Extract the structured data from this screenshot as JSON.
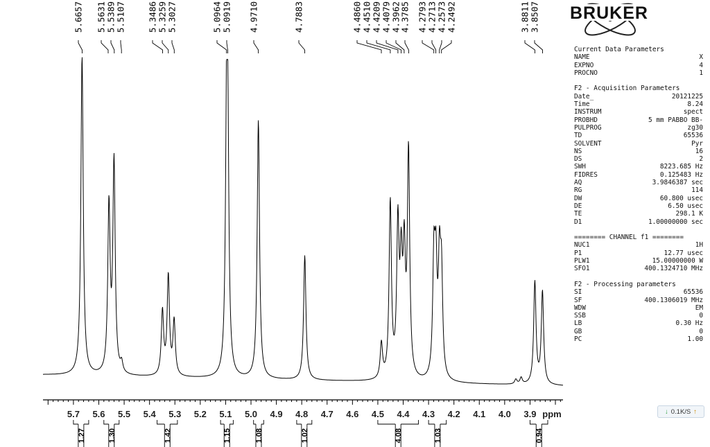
{
  "chart_data": {
    "type": "line",
    "xlabel": "ppm",
    "xlim": [
      5.82,
      3.77
    ],
    "x_ticks": [
      "5.7",
      "5.6",
      "5.5",
      "5.4",
      "5.3",
      "5.2",
      "5.1",
      "5.0",
      "4.9",
      "4.8",
      "4.7",
      "4.6",
      "4.5",
      "4.4",
      "4.3",
      "4.2",
      "4.1",
      "4.0",
      "3.9"
    ],
    "peak_labels": [
      "5.6657",
      "5.5631",
      "5.5389",
      "5.5107",
      "5.3486",
      "5.3259",
      "5.3027",
      "5.0964",
      "5.0919",
      "4.9710",
      "4.7883",
      "4.4860",
      "4.4510",
      "4.4209",
      "4.4079",
      "4.3962",
      "4.3785",
      "4.2793",
      "4.2713",
      "4.2573",
      "4.2492",
      "3.8811",
      "3.8507"
    ],
    "peaks": [
      {
        "ppm": 5.666,
        "height": 1.0
      },
      {
        "ppm": 5.56,
        "height": 0.52
      },
      {
        "ppm": 5.54,
        "height": 0.66
      },
      {
        "ppm": 5.51,
        "height": 0.03
      },
      {
        "ppm": 5.349,
        "height": 0.2
      },
      {
        "ppm": 5.326,
        "height": 0.31
      },
      {
        "ppm": 5.303,
        "height": 0.17
      },
      {
        "ppm": 5.096,
        "height": 0.66
      },
      {
        "ppm": 5.092,
        "height": 0.65
      },
      {
        "ppm": 4.971,
        "height": 0.81
      },
      {
        "ppm": 4.788,
        "height": 0.39
      },
      {
        "ppm": 4.486,
        "height": 0.11
      },
      {
        "ppm": 4.451,
        "height": 0.55
      },
      {
        "ppm": 4.421,
        "height": 0.46
      },
      {
        "ppm": 4.408,
        "height": 0.32
      },
      {
        "ppm": 4.396,
        "height": 0.36
      },
      {
        "ppm": 4.379,
        "height": 0.7
      },
      {
        "ppm": 4.279,
        "height": 0.35
      },
      {
        "ppm": 4.271,
        "height": 0.31
      },
      {
        "ppm": 4.257,
        "height": 0.33
      },
      {
        "ppm": 4.249,
        "height": 0.3
      },
      {
        "ppm": 3.956,
        "height": 0.015
      },
      {
        "ppm": 3.935,
        "height": 0.02
      },
      {
        "ppm": 3.881,
        "height": 0.32
      },
      {
        "ppm": 3.851,
        "height": 0.29
      }
    ],
    "integrals": [
      {
        "value": "1.27",
        "from": 5.7,
        "to": 5.64
      },
      {
        "value": "1.30",
        "from": 5.58,
        "to": 5.52
      },
      {
        "value": "1.42",
        "from": 5.37,
        "to": 5.29
      },
      {
        "value": "1.15",
        "from": 5.12,
        "to": 5.07
      },
      {
        "value": "1.08",
        "from": 4.99,
        "to": 4.95
      },
      {
        "value": "1.02",
        "from": 4.82,
        "to": 4.76
      },
      {
        "value": "4.08",
        "from": 4.5,
        "to": 4.34
      },
      {
        "value": "1.03",
        "from": 4.3,
        "to": 4.23
      },
      {
        "value": "0.94",
        "from": 3.9,
        "to": 3.83
      }
    ]
  },
  "logo_text": "BRUKER",
  "params": {
    "current": {
      "title": "Current Data Parameters",
      "rows": [
        [
          "NAME",
          "X"
        ],
        [
          "EXPNO",
          "4"
        ],
        [
          "PROCNO",
          "1"
        ]
      ]
    },
    "acq": {
      "title": "F2 - Acquisition Parameters",
      "rows": [
        [
          "Date_",
          "20121225"
        ],
        [
          "Time",
          "8.24"
        ],
        [
          "INSTRUM",
          "spect"
        ],
        [
          "PROBHD",
          "5 mm PABBO BB-"
        ],
        [
          "PULPROG",
          "zg30"
        ],
        [
          "TD",
          "65536"
        ],
        [
          "SOLVENT",
          "Pyr"
        ],
        [
          "NS",
          "16"
        ],
        [
          "DS",
          "2"
        ],
        [
          "SWH",
          "8223.685 Hz"
        ],
        [
          "FIDRES",
          "0.125483 Hz"
        ],
        [
          "AQ",
          "3.9846387 sec"
        ],
        [
          "RG",
          "114"
        ],
        [
          "DW",
          "60.800 usec"
        ],
        [
          "DE",
          "6.50 usec"
        ],
        [
          "TE",
          "298.1 K"
        ],
        [
          "D1",
          "1.00000000 sec"
        ]
      ]
    },
    "chan": {
      "title": "======== CHANNEL f1 ========",
      "rows": [
        [
          "NUC1",
          "1H"
        ],
        [
          "P1",
          "12.77 usec"
        ],
        [
          "PLW1",
          "15.00000000 W"
        ],
        [
          "SFO1",
          "400.1324710 MHz"
        ]
      ]
    },
    "proc": {
      "title": "F2 - Processing parameters",
      "rows": [
        [
          "SI",
          "65536"
        ],
        [
          "SF",
          "400.1306019 MHz"
        ],
        [
          "WDW",
          "EM"
        ],
        [
          "SSB",
          "0"
        ],
        [
          "LB",
          "0.30 Hz"
        ],
        [
          "GB",
          "0"
        ],
        [
          "PC",
          "1.00"
        ]
      ]
    }
  },
  "status": {
    "text": "0.1K/S"
  }
}
